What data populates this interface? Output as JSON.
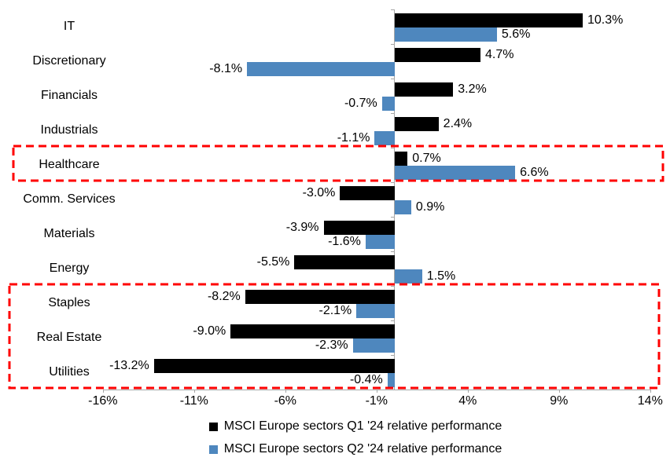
{
  "chart_data": {
    "type": "bar",
    "orientation": "horizontal",
    "title": "",
    "xlabel": "",
    "ylabel": "",
    "grid": "off",
    "legend_position": "bottom",
    "categories": [
      "IT",
      "Discretionary",
      "Financials",
      "Industrials",
      "Healthcare",
      "Comm. Services",
      "Materials",
      "Energy",
      "Staples",
      "Real Estate",
      "Utilities"
    ],
    "series": [
      {
        "name": "MSCI Europe sectors Q1 '24 relative performance",
        "key": "q1",
        "color": "#000000",
        "values": [
          10.3,
          4.7,
          3.2,
          2.4,
          0.7,
          -3.0,
          -3.9,
          -5.5,
          -8.2,
          -9.0,
          -13.2
        ],
        "labels": [
          "10.3%",
          "4.7%",
          "3.2%",
          "2.4%",
          "0.7%",
          "-3.0%",
          "-3.9%",
          "-5.5%",
          "-8.2%",
          "-9.0%",
          "-13.2%"
        ]
      },
      {
        "name": "MSCI Europe sectors Q2 '24 relative performance",
        "key": "q2",
        "color": "#4E87BE",
        "values": [
          5.6,
          -8.1,
          -0.7,
          -1.1,
          6.6,
          0.9,
          -1.6,
          1.5,
          -2.1,
          -2.3,
          -0.4
        ],
        "labels": [
          "5.6%",
          "-8.1%",
          "-0.7%",
          "-1.1%",
          "6.6%",
          "0.9%",
          "-1.6%",
          "1.5%",
          "-2.1%",
          "-2.3%",
          "-0.4%"
        ]
      }
    ],
    "x_ticks": [
      {
        "value": -16,
        "label": "-16%"
      },
      {
        "value": -11,
        "label": "-11%"
      },
      {
        "value": -6,
        "label": "-6%"
      },
      {
        "value": -1,
        "label": "-1%"
      },
      {
        "value": 4,
        "label": "4%"
      },
      {
        "value": 9,
        "label": "9%"
      },
      {
        "value": 14,
        "label": "14%"
      }
    ],
    "axis_range": [
      -16,
      14
    ],
    "axis_color": "#A6A6A6",
    "highlights": [
      {
        "categories": [
          "Healthcare"
        ],
        "style": "red-dashed-box",
        "color": "#FF0000"
      },
      {
        "categories": [
          "Staples",
          "Real Estate",
          "Utilities"
        ],
        "style": "red-dashed-box",
        "color": "#FF0000"
      }
    ]
  }
}
